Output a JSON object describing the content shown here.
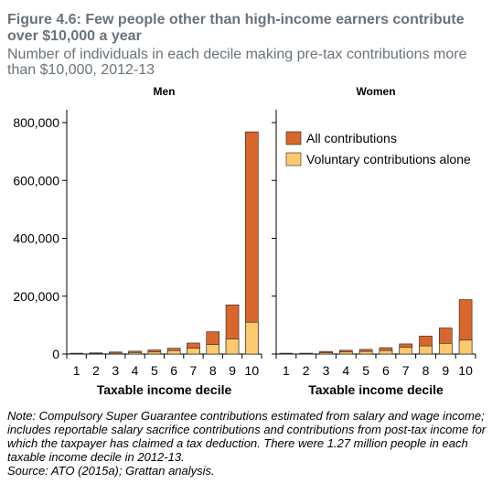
{
  "header": {
    "title": "Figure 4.6: Few people other than high-income earners contribute over $10,000 a year",
    "subtitle": "Number of individuals in each decile making pre-tax contributions more than $10,000, 2012-13"
  },
  "footer": {
    "note": "Note: Compulsory Super Guarantee contributions estimated from salary and wage income; includes reportable salary sacrifice contributions and contributions from post-tax income for which the taxpayer has claimed a tax deduction. There were 1.27 million people in each taxable income decile in 2012-13.",
    "source": "Source: ATO (2015a); Grattan analysis."
  },
  "colors": {
    "all_contributions": "#d9672c",
    "voluntary": "#fcc96c",
    "axis": "#000000",
    "title_gray": "#6a737b"
  },
  "chart_data": [
    {
      "type": "bar",
      "title": "Men",
      "xlabel": "Taxable income decile",
      "ylabel": "",
      "categories": [
        "1",
        "2",
        "3",
        "4",
        "5",
        "6",
        "7",
        "8",
        "9",
        "10"
      ],
      "ylim": [
        0,
        800000
      ],
      "yticks": [
        0,
        200000,
        400000,
        600000,
        800000
      ],
      "ytick_labels": [
        "0",
        "200,000",
        "400,000",
        "600,000",
        "800,000"
      ],
      "grid": false,
      "series": [
        {
          "name": "All contributions",
          "values": [
            3000,
            4000,
            7000,
            10000,
            14000,
            20000,
            38000,
            77000,
            170000,
            768000
          ]
        },
        {
          "name": "Voluntary contributions alone",
          "values": [
            1500,
            2000,
            3000,
            5000,
            7000,
            12000,
            20000,
            33000,
            52000,
            110000
          ]
        }
      ]
    },
    {
      "type": "bar",
      "title": "Women",
      "xlabel": "Taxable income decile",
      "ylabel": "",
      "categories": [
        "1",
        "2",
        "3",
        "4",
        "5",
        "6",
        "7",
        "8",
        "9",
        "10"
      ],
      "ylim": [
        0,
        800000
      ],
      "yticks": [
        0,
        200000,
        400000,
        600000,
        800000
      ],
      "grid": false,
      "legend": "top-left",
      "series": [
        {
          "name": "All contributions",
          "values": [
            3000,
            3000,
            9000,
            13000,
            16000,
            22000,
            35000,
            62000,
            90000,
            188000
          ]
        },
        {
          "name": "Voluntary contributions alone",
          "values": [
            1500,
            2000,
            4000,
            7000,
            9000,
            12000,
            23000,
            28000,
            37000,
            48000
          ]
        }
      ]
    }
  ]
}
